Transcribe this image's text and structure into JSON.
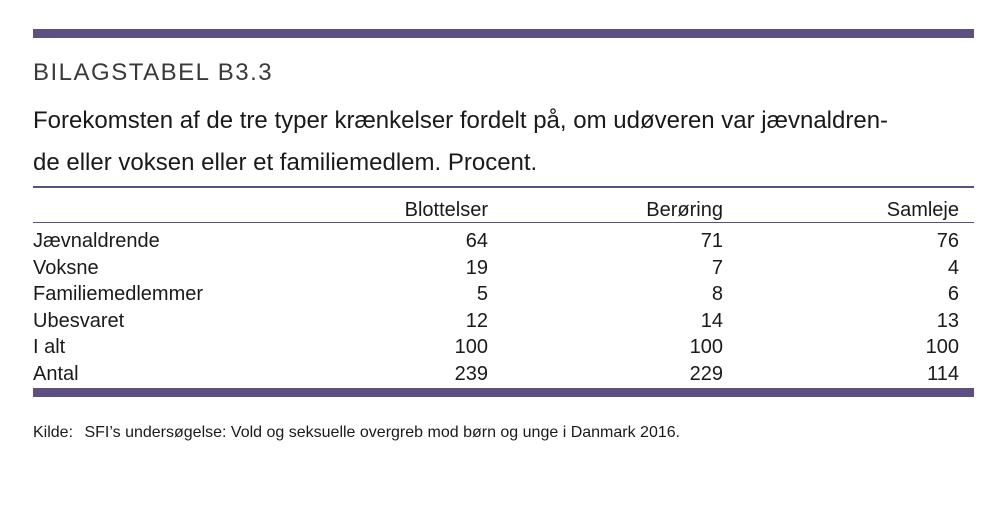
{
  "colors": {
    "accent": "#5e4f82"
  },
  "table_label": "BILAGSTABEL B3.3",
  "caption_lines": [
    "Forekomsten af de tre typer krænkelser fordelt på, om udøveren var jævnaldren-",
    "de eller voksen eller et familiemedlem. Procent."
  ],
  "columns": [
    "",
    "Blottelser",
    "Berøring",
    "Samleje"
  ],
  "rows": [
    {
      "label": "Jævnaldrende",
      "values": [
        "64",
        "71",
        "76"
      ]
    },
    {
      "label": "Voksne",
      "values": [
        "19",
        "7",
        "4"
      ]
    },
    {
      "label": "Familiemedlemmer",
      "values": [
        "5",
        "8",
        "6"
      ]
    },
    {
      "label": "Ubesvaret",
      "values": [
        "12",
        "14",
        "13"
      ]
    },
    {
      "label": "I alt",
      "values": [
        "100",
        "100",
        "100"
      ]
    },
    {
      "label": "Antal",
      "values": [
        "239",
        "229",
        "114"
      ]
    }
  ],
  "source": {
    "label": "Kilde:",
    "text": "SFI’s undersøgelse: Vold og seksuelle overgreb mod børn og unge i Danmark 2016."
  }
}
